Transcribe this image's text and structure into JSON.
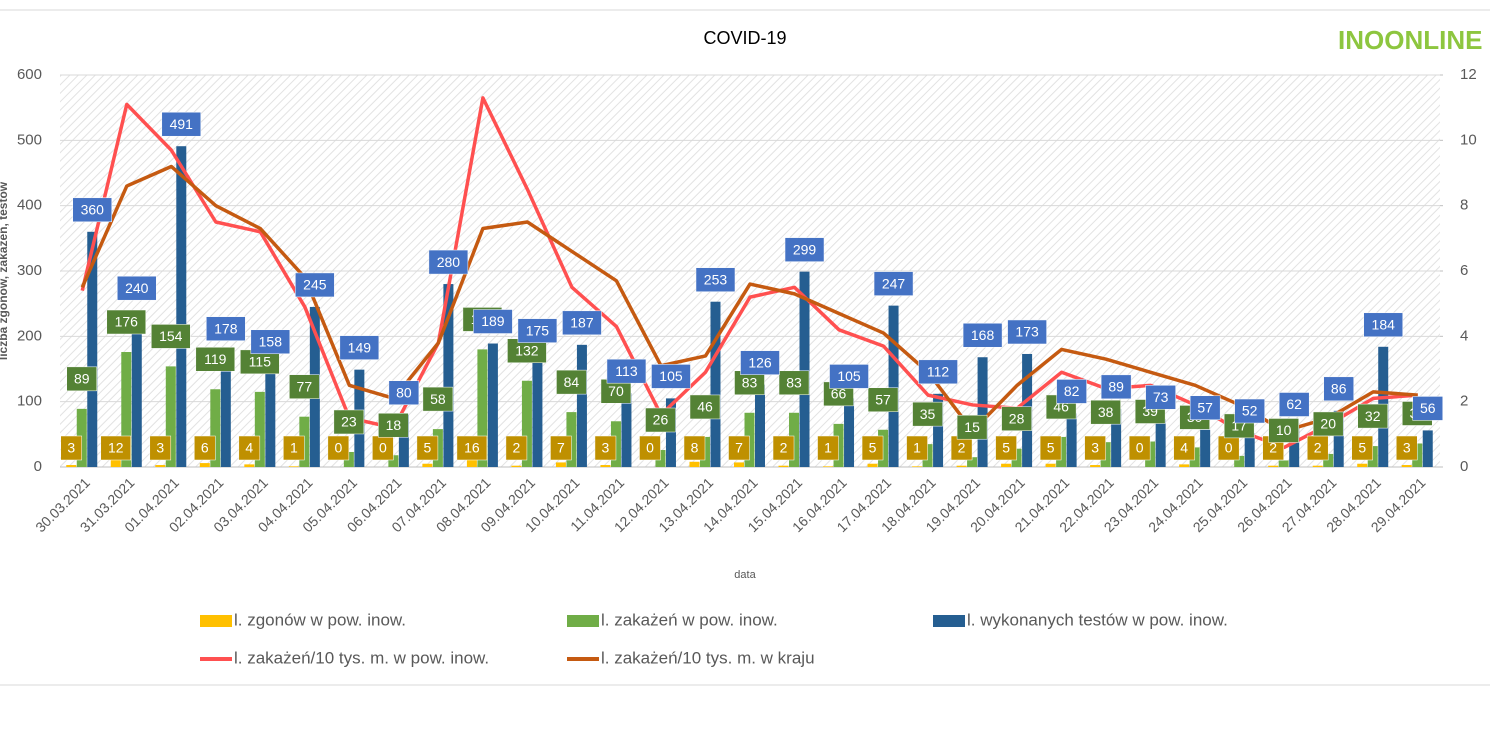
{
  "logo": "INOONLINE",
  "chart_data": {
    "type": "bar",
    "title": "COVID-19",
    "x_label": "data",
    "y_label": "liczba zgonów, zakażeń, testów",
    "categories": [
      "30.03.2021",
      "31.03.2021",
      "01.04.2021",
      "02.04.2021",
      "03.04.2021",
      "04.04.2021",
      "05.04.2021",
      "06.04.2021",
      "07.04.2021",
      "08.04.2021",
      "09.04.2021",
      "10.04.2021",
      "11.04.2021",
      "12.04.2021",
      "13.04.2021",
      "14.04.2021",
      "15.04.2021",
      "16.04.2021",
      "17.04.2021",
      "18.04.2021",
      "19.04.2021",
      "20.04.2021",
      "21.04.2021",
      "22.04.2021",
      "23.04.2021",
      "24.04.2021",
      "25.04.2021",
      "26.04.2021",
      "27.04.2021",
      "28.04.2021",
      "29.04.2021"
    ],
    "series": [
      {
        "name": "l. zgonów w pow. inow.",
        "type": "bar",
        "color": "#ffc000",
        "label_color": "#bf9000",
        "values": [
          3,
          12,
          3,
          6,
          4,
          1,
          0,
          0,
          5,
          16,
          2,
          7,
          3,
          0,
          8,
          7,
          2,
          1,
          5,
          1,
          2,
          5,
          5,
          3,
          0,
          4,
          0,
          2,
          2,
          5,
          3
        ]
      },
      {
        "name": "l. zakażeń w pow. inow.",
        "type": "bar",
        "color": "#70ad47",
        "label_color": "#548235",
        "values": [
          89,
          176,
          154,
          119,
          115,
          77,
          23,
          18,
          58,
          180,
          132,
          84,
          70,
          26,
          46,
          83,
          83,
          66,
          57,
          35,
          15,
          28,
          46,
          38,
          39,
          30,
          17,
          10,
          20,
          32,
          36
        ]
      },
      {
        "name": "l. wykonanych testów w pow. inow.",
        "type": "bar",
        "color": "#255e91",
        "label_color": "#4472c4",
        "values": [
          360,
          240,
          491,
          178,
          158,
          245,
          149,
          80,
          280,
          189,
          175,
          187,
          113,
          105,
          253,
          126,
          299,
          105,
          247,
          112,
          168,
          173,
          82,
          89,
          73,
          57,
          52,
          62,
          86,
          184,
          56
        ]
      },
      {
        "name": "l. zakażeń/10 tys. m. w pow. inow.",
        "type": "line",
        "axis": "y2",
        "color": "#ff5050",
        "values": [
          5.4,
          11.1,
          9.7,
          7.5,
          7.2,
          4.9,
          1.5,
          1.2,
          3.8,
          11.3,
          8.5,
          5.5,
          4.3,
          1.6,
          2.9,
          5.2,
          5.5,
          4.2,
          3.7,
          2.2,
          1.9,
          1.8,
          2.9,
          2.4,
          2.5,
          1.9,
          1.1,
          0.6,
          1.3,
          2.1,
          2.2
        ]
      },
      {
        "name": "l. zakażeń/10 tys. m. w kraju",
        "type": "line",
        "axis": "y2",
        "color": "#c55a11",
        "values": [
          5.5,
          8.6,
          9.2,
          8.0,
          7.3,
          5.8,
          2.5,
          2.1,
          3.8,
          7.3,
          7.5,
          6.6,
          5.7,
          3.1,
          3.4,
          5.6,
          5.3,
          4.7,
          4.1,
          2.9,
          1.1,
          2.5,
          3.6,
          3.3,
          2.9,
          2.5,
          1.9,
          1.1,
          1.5,
          2.3,
          2.2
        ]
      }
    ],
    "ylim": [
      0,
      600
    ],
    "yticks": [
      0,
      100,
      200,
      300,
      400,
      500,
      600
    ],
    "y2lim": [
      0,
      12
    ],
    "y2ticks": [
      0,
      2,
      4,
      6,
      8,
      10,
      12
    ],
    "grid": true
  }
}
